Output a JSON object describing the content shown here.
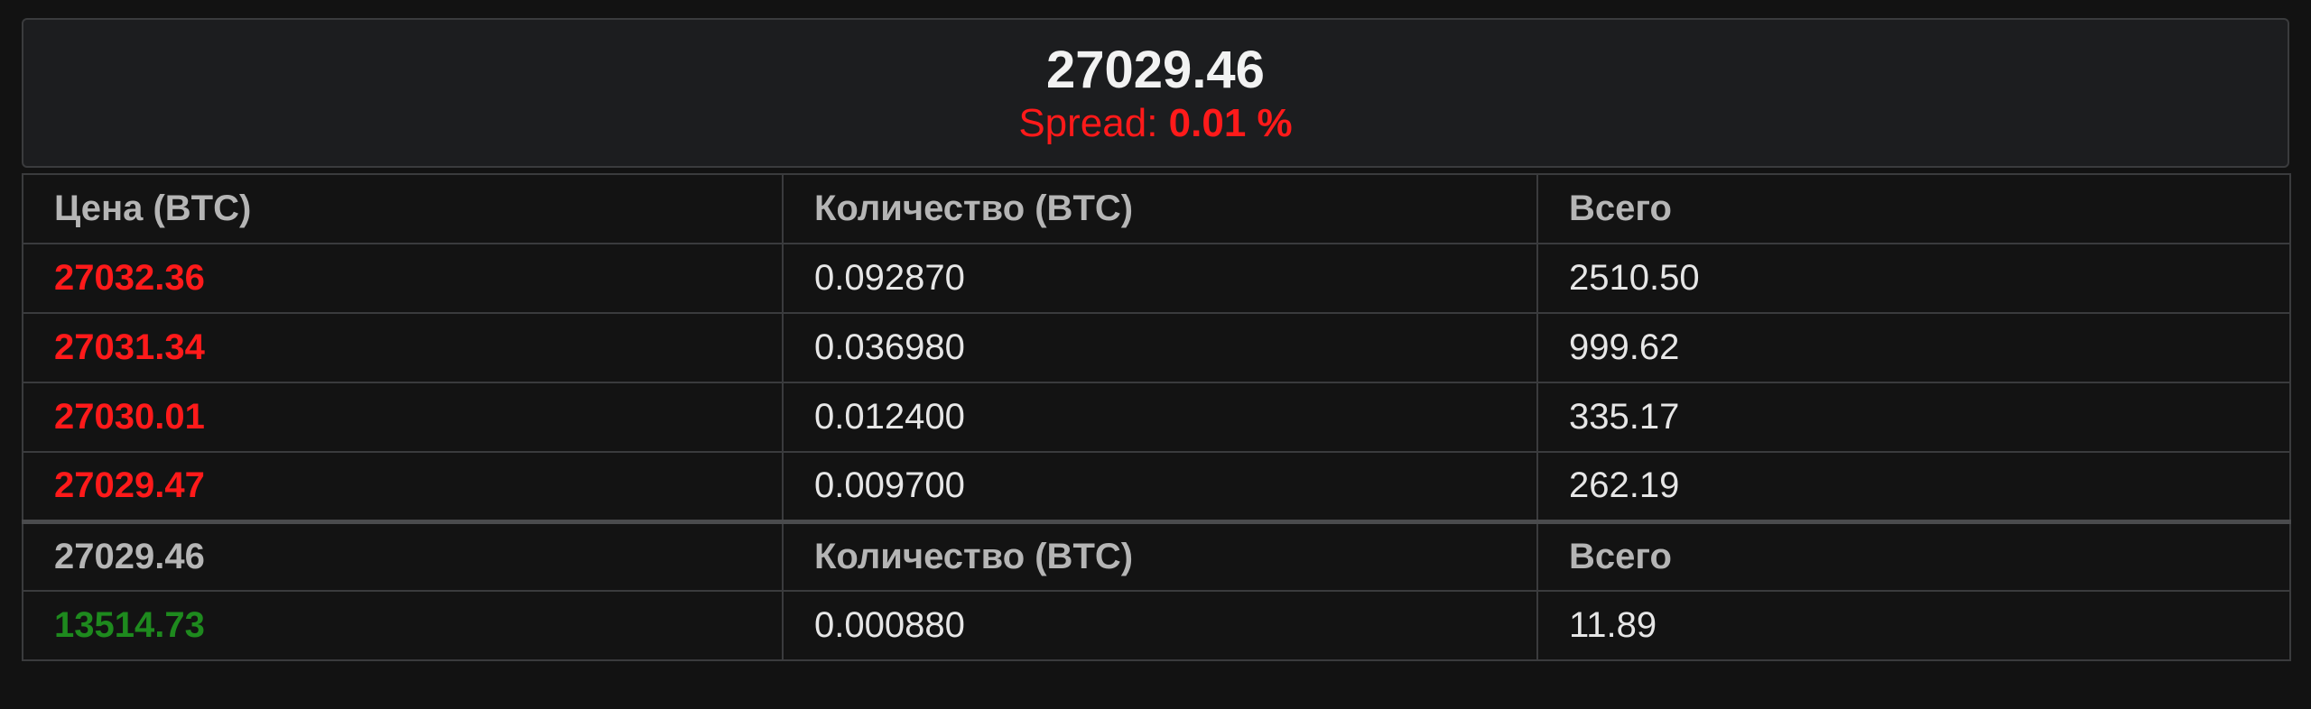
{
  "header": {
    "price": "27029.46",
    "spread_label": "Spread:",
    "spread_value": "0.01 %"
  },
  "colors": {
    "ask": "#ff1a1a",
    "bid": "#1e8a1e",
    "background": "#121212"
  },
  "asks_table": {
    "columns": [
      "Цена (BTC)",
      "Количество (BTC)",
      "Всего"
    ],
    "rows": [
      {
        "price": "27032.36",
        "qty": "0.092870",
        "total": "2510.50"
      },
      {
        "price": "27031.34",
        "qty": "0.036980",
        "total": "999.62"
      },
      {
        "price": "27030.01",
        "qty": "0.012400",
        "total": "335.17"
      },
      {
        "price": "27029.47",
        "qty": "0.009700",
        "total": "262.19"
      }
    ]
  },
  "bids_table": {
    "columns": [
      "27029.46",
      "Количество (BTC)",
      "Всего"
    ],
    "rows": [
      {
        "price": "13514.73",
        "qty": "0.000880",
        "total": "11.89"
      }
    ]
  }
}
